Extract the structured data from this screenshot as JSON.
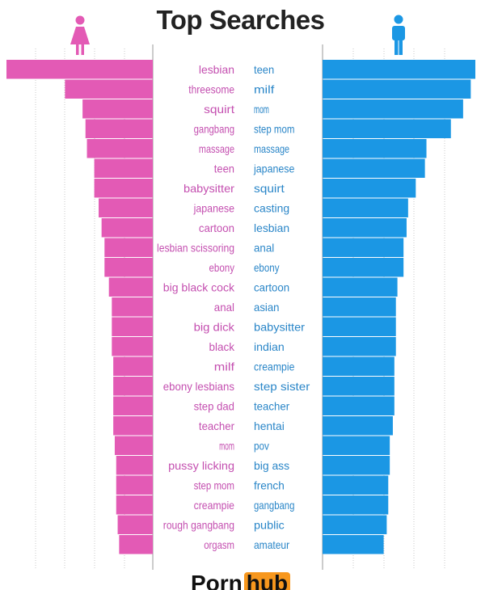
{
  "title": "Top Searches",
  "brand": {
    "part1": "Porn",
    "part2": "hub"
  },
  "icons": {
    "left": "female-icon",
    "right": "male-icon"
  },
  "colors": {
    "female": "#e35ab5",
    "male": "#1b97e4",
    "female_text": "#c44fb0",
    "male_text": "#2a86c8"
  },
  "chart_data": {
    "type": "bar",
    "title": "Top Searches",
    "series": [
      {
        "categories": [
          "lesbian",
          "threesome",
          "squirt",
          "gangbang",
          "massage",
          "teen",
          "babysitter",
          "japanese",
          "cartoon",
          "lesbian scissoring",
          "ebony",
          "big black cock",
          "anal",
          "big dick",
          "black",
          "milf",
          "ebony lesbians",
          "step dad",
          "teacher",
          "mom",
          "pussy licking",
          "step mom",
          "creampie",
          "rough gangbang",
          "orgasm"
        ],
        "values": [
          100,
          60,
          48,
          46,
          45,
          40,
          40,
          37,
          35,
          33,
          33,
          30,
          28,
          28,
          28,
          27,
          27,
          27,
          27,
          26,
          25,
          25,
          25,
          24,
          23
        ]
      },
      {
        "categories": [
          "teen",
          "milf",
          "mom",
          "step mom",
          "massage",
          "japanese",
          "squirt",
          "casting",
          "lesbian",
          "anal",
          "ebony",
          "cartoon",
          "asian",
          "babysitter",
          "indian",
          "creampie",
          "step sister",
          "teacher",
          "hentai",
          "pov",
          "big ass",
          "french",
          "gangbang",
          "public",
          "amateur"
        ],
        "values": [
          100,
          97,
          92,
          84,
          68,
          67,
          61,
          56,
          55,
          53,
          53,
          49,
          48,
          48,
          48,
          47,
          47,
          47,
          46,
          44,
          44,
          43,
          43,
          42,
          40
        ]
      }
    ],
    "grid": true,
    "legend": "none"
  }
}
